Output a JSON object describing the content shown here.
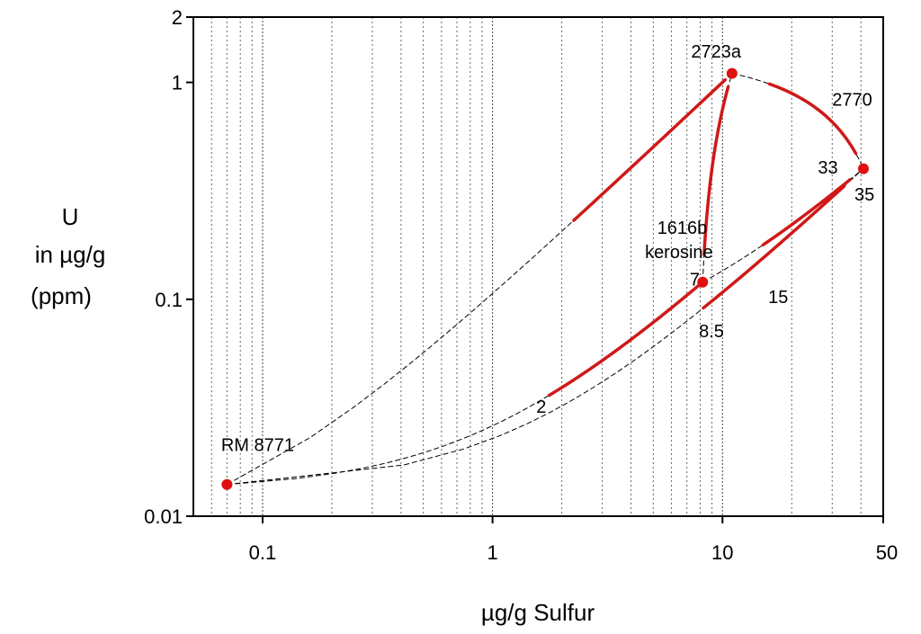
{
  "chart_data": {
    "type": "line",
    "xlabel": "µg/g Sulfur",
    "ylabel_lines": [
      "U",
      "in µg/g",
      "(ppm)"
    ],
    "x_scale": "log",
    "y_scale": "log",
    "xlim": [
      0.05,
      50
    ],
    "ylim": [
      0.01,
      2
    ],
    "grid": {
      "x": "dotted vertical at 0.06-0.09, 0.2-0.9, 2-9, 20-40",
      "y": "none"
    },
    "x_ticks": [
      {
        "value": 0.1,
        "label": "0.1"
      },
      {
        "value": 1,
        "label": "1"
      },
      {
        "value": 10,
        "label": "10"
      },
      {
        "value": 50,
        "label": "50"
      }
    ],
    "y_ticks": [
      {
        "value": 0.01,
        "label": "0.01"
      },
      {
        "value": 0.1,
        "label": "0.1"
      },
      {
        "value": 1,
        "label": "1"
      },
      {
        "value": 2,
        "label": "2"
      }
    ],
    "colors": {
      "reference": "#e01010",
      "blend_bold": "#d01818",
      "blend_dashed": "#000000",
      "frame": "#000000"
    },
    "reference_points": [
      {
        "id": "rm8771",
        "x": 0.07,
        "y": 0.014
      },
      {
        "id": "1616b",
        "x": 8.2,
        "y": 0.12
      },
      {
        "id": "2723a",
        "x": 11,
        "y": 1.1
      },
      {
        "id": "2770",
        "x": 41,
        "y": 0.4
      }
    ],
    "point_labels": [
      {
        "text": "RM 8771",
        "x": 0.066,
        "y": 0.02
      },
      {
        "text": "1616b",
        "x": 5.2,
        "y": 0.2
      },
      {
        "text": "kerosine",
        "x": 4.6,
        "y": 0.155
      },
      {
        "text": "2723a",
        "x": 7.3,
        "y": 1.3
      },
      {
        "text": "2770",
        "x": 30,
        "y": 0.78
      }
    ],
    "blend_lines": [
      {
        "from": "rm8771",
        "to": "2723a",
        "bold_x": [
          2.2,
          10.3
        ]
      },
      {
        "from": "rm8771",
        "to": "1616b",
        "bold_x": [
          1.75,
          7.9
        ]
      },
      {
        "from": "rm8771",
        "to": "2770",
        "bold_x": [
          8.2,
          34
        ]
      },
      {
        "from": "1616b",
        "to": "2723a",
        "bold_x": [
          8.3,
          10.6
        ]
      },
      {
        "from": "2723a",
        "to": "2770",
        "bold_x": [
          16,
          38
        ]
      },
      {
        "from": "1616b",
        "to": "2770",
        "bold_x": [
          15,
          36
        ]
      }
    ],
    "blend_labels": [
      {
        "text": "2",
        "x": 1.55,
        "y": 0.03
      },
      {
        "text": "7",
        "x": 7.2,
        "y": 0.116
      },
      {
        "text": "8.5",
        "x": 7.9,
        "y": 0.067
      },
      {
        "text": "15",
        "x": 15.8,
        "y": 0.096
      },
      {
        "text": "33",
        "x": 26,
        "y": 0.38
      },
      {
        "text": "35",
        "x": 37.5,
        "y": 0.285
      }
    ]
  }
}
